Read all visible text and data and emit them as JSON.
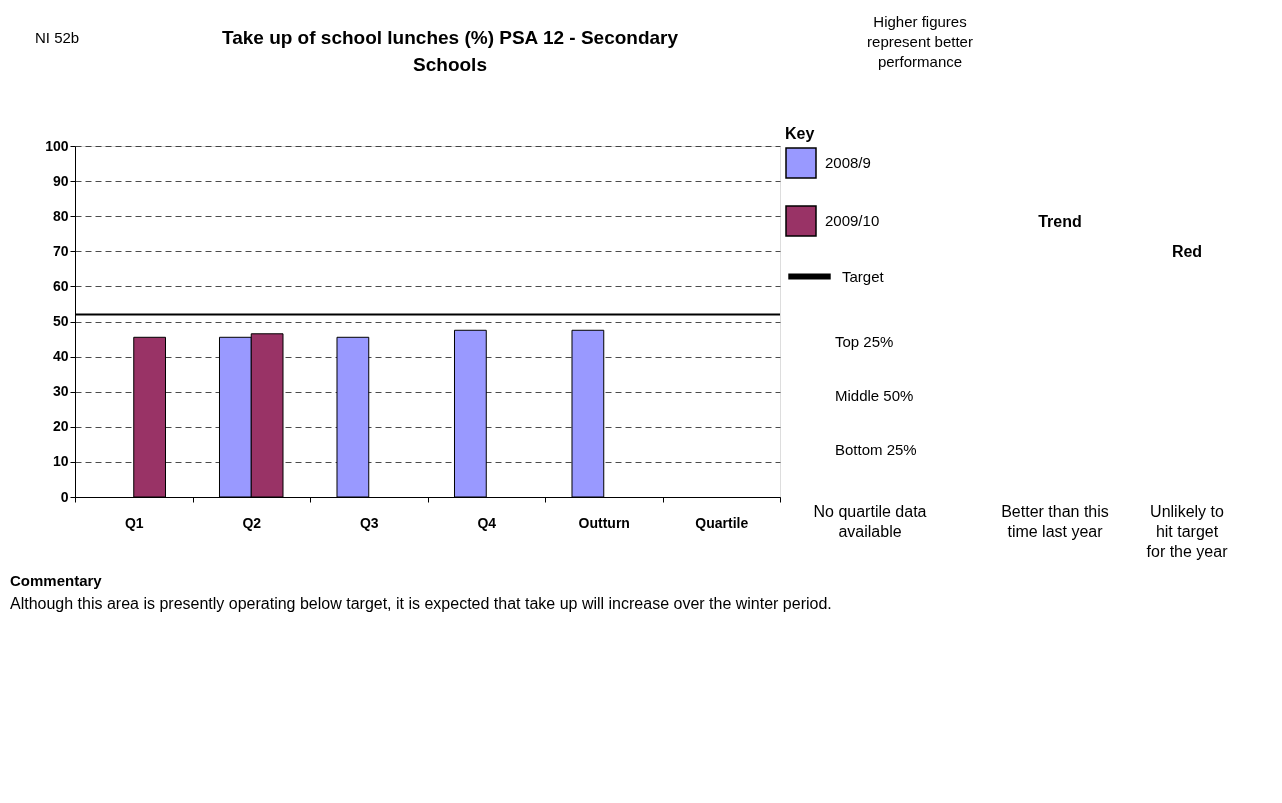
{
  "chart_data": {
    "type": "bar",
    "title": "Take up of school lunches (%) PSA 12 - Secondary Schools",
    "categories": [
      "Q1",
      "Q2",
      "Q3",
      "Q4",
      "Outturn",
      "Quartile"
    ],
    "series": [
      {
        "name": "2008/9",
        "color": "#9999ff",
        "values": [
          null,
          45.5,
          45.5,
          47.5,
          47.5,
          null
        ]
      },
      {
        "name": "2009/10",
        "color": "#993366",
        "values": [
          45.5,
          46.5,
          null,
          null,
          null,
          null
        ]
      }
    ],
    "ylim": [
      0,
      100
    ],
    "yticks": [
      0,
      10,
      20,
      30,
      40,
      50,
      60,
      70,
      80,
      90,
      100
    ],
    "grid": "y",
    "ref_lines": [
      {
        "axis": "y",
        "value": 52,
        "label": "Target",
        "color": "#000000"
      }
    ],
    "legend": "right",
    "legend_title": "Key",
    "annotations": [
      "NI 52b",
      "Higher figures represent better performance",
      "Top 25%",
      "Middle 50%",
      "Bottom 25%",
      "No quartile data available",
      "Trend",
      "Red",
      "Better than this time last year",
      "Unlikely to hit target for the year",
      "Commentary",
      "Although this area is presently operating below target, it is expected that take up will increase over the winter period."
    ]
  }
}
